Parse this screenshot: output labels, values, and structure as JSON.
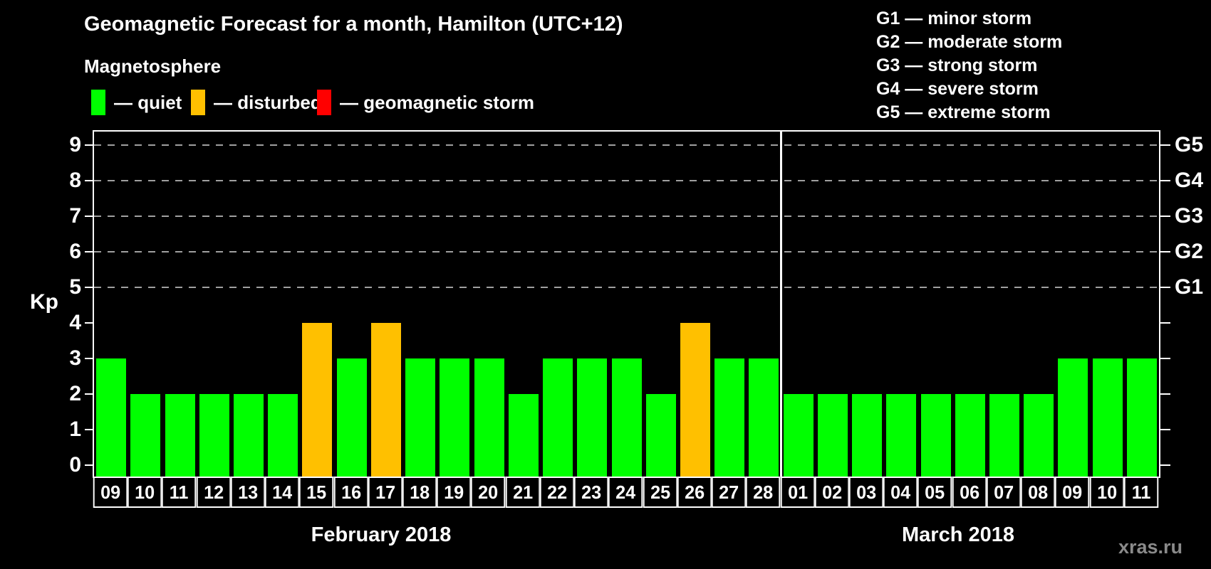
{
  "title": "Geomagnetic Forecast for a month, Hamilton (UTC+12)",
  "subtitle": "Magnetosphere",
  "legend": {
    "items": [
      {
        "key": "quiet",
        "label": "— quiet",
        "color": "#00ff00"
      },
      {
        "key": "disturbed",
        "label": "— disturbed",
        "color": "#ffc000"
      },
      {
        "key": "storm",
        "label": "— geomagnetic storm",
        "color": "#ff0000"
      }
    ]
  },
  "g_scale_legend": [
    "G1 — minor storm",
    "G2 — moderate storm",
    "G3 — strong storm",
    "G4 — severe storm",
    "G5 — extreme storm"
  ],
  "axis": {
    "kp_label": "Kp",
    "left_ticks": [
      "0",
      "1",
      "2",
      "3",
      "4",
      "5",
      "6",
      "7",
      "8",
      "9"
    ],
    "right_labels": [
      {
        "kp": 5,
        "g": "G1"
      },
      {
        "kp": 6,
        "g": "G2"
      },
      {
        "kp": 7,
        "g": "G3"
      },
      {
        "kp": 8,
        "g": "G4"
      },
      {
        "kp": 9,
        "g": "G5"
      }
    ]
  },
  "chart_data": {
    "type": "bar",
    "ylabel": "Kp",
    "ylim": [
      0,
      9
    ],
    "grid_levels": [
      5,
      6,
      7,
      8,
      9
    ],
    "legend_position": "top",
    "months": [
      {
        "label": "February 2018",
        "days": [
          {
            "day": "09",
            "kp": 3,
            "status": "quiet"
          },
          {
            "day": "10",
            "kp": 2,
            "status": "quiet"
          },
          {
            "day": "11",
            "kp": 2,
            "status": "quiet"
          },
          {
            "day": "12",
            "kp": 2,
            "status": "quiet"
          },
          {
            "day": "13",
            "kp": 2,
            "status": "quiet"
          },
          {
            "day": "14",
            "kp": 2,
            "status": "quiet"
          },
          {
            "day": "15",
            "kp": 4,
            "status": "disturbed"
          },
          {
            "day": "16",
            "kp": 3,
            "status": "quiet"
          },
          {
            "day": "17",
            "kp": 4,
            "status": "disturbed"
          },
          {
            "day": "18",
            "kp": 3,
            "status": "quiet"
          },
          {
            "day": "19",
            "kp": 3,
            "status": "quiet"
          },
          {
            "day": "20",
            "kp": 3,
            "status": "quiet"
          },
          {
            "day": "21",
            "kp": 2,
            "status": "quiet"
          },
          {
            "day": "22",
            "kp": 3,
            "status": "quiet"
          },
          {
            "day": "23",
            "kp": 3,
            "status": "quiet"
          },
          {
            "day": "24",
            "kp": 3,
            "status": "quiet"
          },
          {
            "day": "25",
            "kp": 2,
            "status": "quiet"
          },
          {
            "day": "26",
            "kp": 4,
            "status": "disturbed"
          },
          {
            "day": "27",
            "kp": 3,
            "status": "quiet"
          },
          {
            "day": "28",
            "kp": 3,
            "status": "quiet"
          }
        ]
      },
      {
        "label": "March 2018",
        "days": [
          {
            "day": "01",
            "kp": 2,
            "status": "quiet"
          },
          {
            "day": "02",
            "kp": 2,
            "status": "quiet"
          },
          {
            "day": "03",
            "kp": 2,
            "status": "quiet"
          },
          {
            "day": "04",
            "kp": 2,
            "status": "quiet"
          },
          {
            "day": "05",
            "kp": 2,
            "status": "quiet"
          },
          {
            "day": "06",
            "kp": 2,
            "status": "quiet"
          },
          {
            "day": "07",
            "kp": 2,
            "status": "quiet"
          },
          {
            "day": "08",
            "kp": 2,
            "status": "quiet"
          },
          {
            "day": "09",
            "kp": 3,
            "status": "quiet"
          },
          {
            "day": "10",
            "kp": 3,
            "status": "quiet"
          },
          {
            "day": "11",
            "kp": 3,
            "status": "quiet"
          }
        ]
      }
    ]
  },
  "watermark": "xras.ru"
}
